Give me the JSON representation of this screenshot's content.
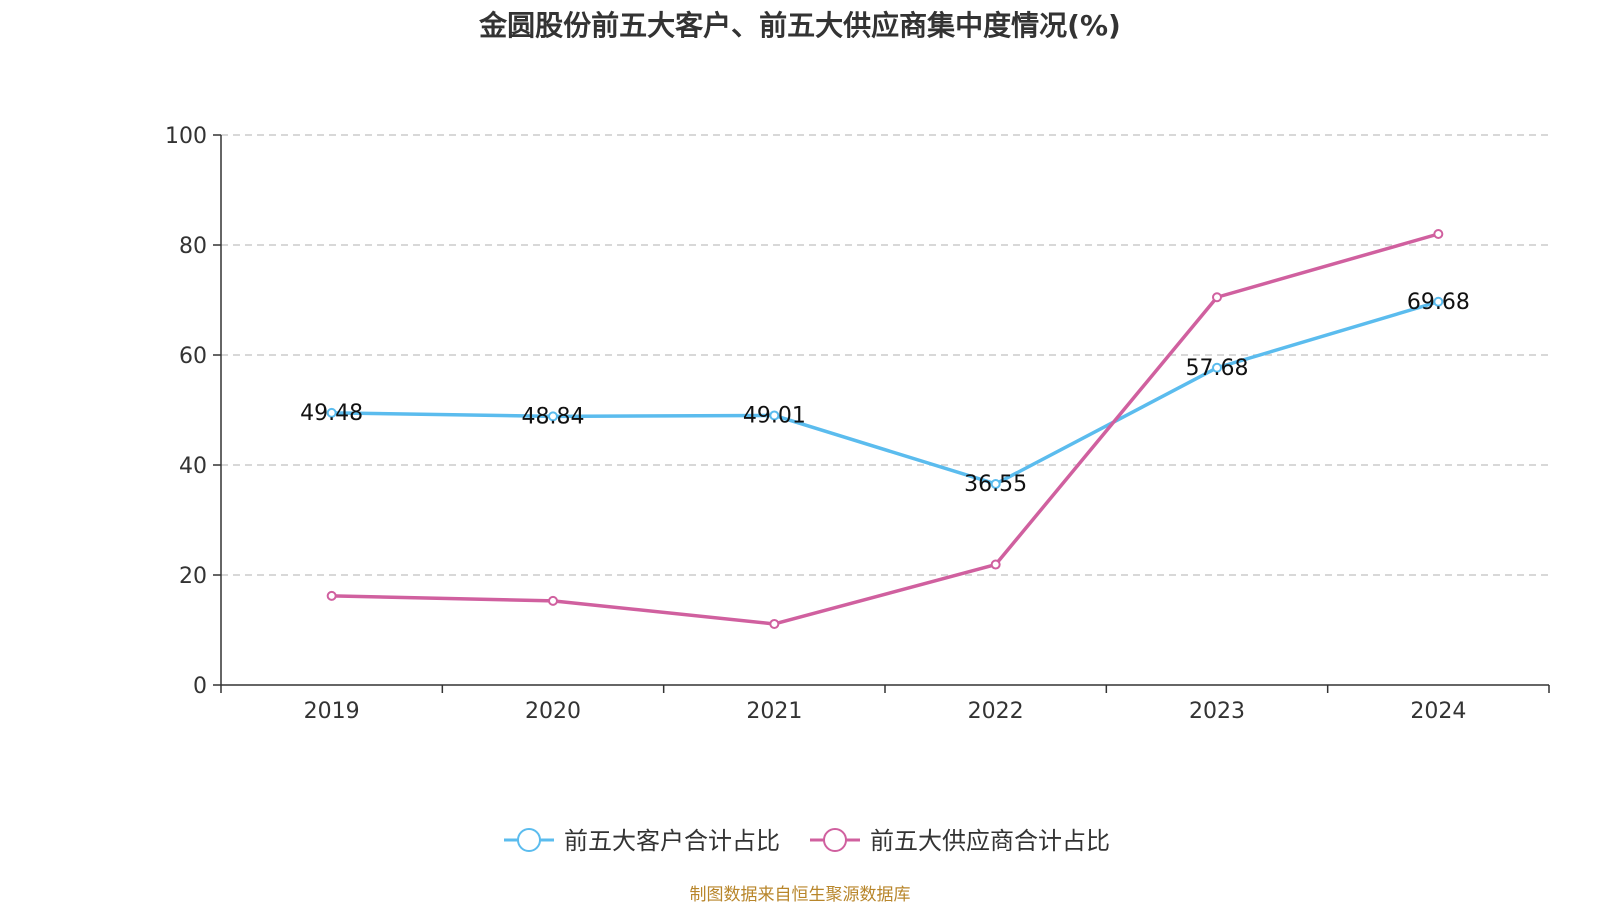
{
  "chart_data": {
    "type": "line",
    "title": "金圆股份前五大客户、前五大供应商集中度情况(%)",
    "x": [
      "2019",
      "2020",
      "2021",
      "2022",
      "2023",
      "2024"
    ],
    "ylim": [
      0,
      100
    ],
    "yticks": [
      0,
      20,
      40,
      60,
      80,
      100
    ],
    "grid": true,
    "legend_position": "bottom",
    "series": [
      {
        "name": "前五大客户合计占比",
        "color": "#5bbcee",
        "values": [
          49.48,
          48.84,
          49.01,
          36.55,
          57.68,
          69.68
        ],
        "labels": [
          "49.48",
          "48.84",
          "49.01",
          "36.55",
          "57.68",
          "69.68"
        ]
      },
      {
        "name": "前五大供应商合计占比",
        "color": "#d0609f",
        "values": [
          16.2,
          15.3,
          11.1,
          21.9,
          70.5,
          82.0
        ]
      }
    ]
  },
  "source_note": "制图数据来自恒生聚源数据库"
}
